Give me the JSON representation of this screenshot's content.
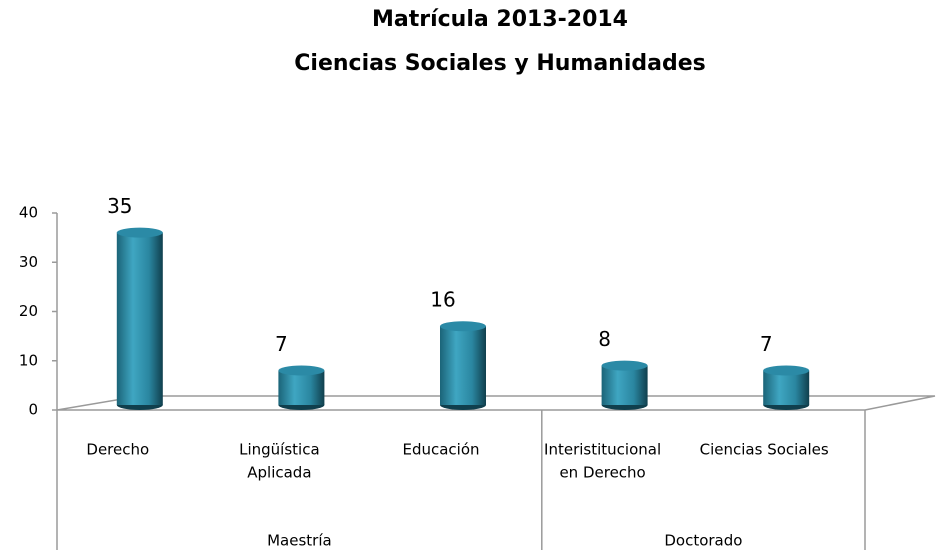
{
  "chart_data": {
    "type": "bar3d",
    "title": [
      "Matrícula 2013-2014",
      "Ciencias Sociales y Humanidades"
    ],
    "groups": [
      {
        "name": "Maestría",
        "categories": [
          [
            "Derecho"
          ],
          [
            "Lingüística",
            "Aplicada"
          ],
          [
            "Educación"
          ]
        ]
      },
      {
        "name": "Doctorado",
        "categories": [
          [
            "Interistitucional",
            "en Derecho"
          ],
          [
            "Ciencias Sociales"
          ]
        ]
      }
    ],
    "values": [
      35,
      7,
      16,
      8,
      7
    ],
    "color": "#2b8aa6",
    "ylim": [
      0,
      40
    ],
    "yticks": [
      0,
      10,
      20,
      30,
      40
    ]
  }
}
